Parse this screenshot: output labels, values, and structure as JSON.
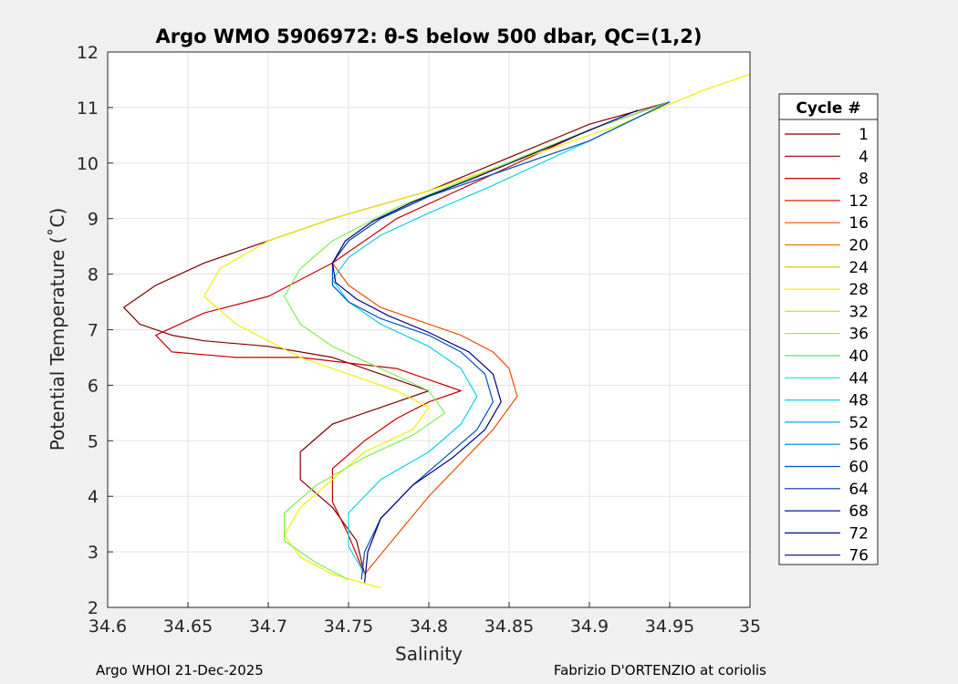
{
  "chart_data": {
    "type": "line",
    "title": "Argo WMO 5906972: θ-S below 500 dbar,  QC=(1,2)",
    "xlabel": "Salinity",
    "ylabel": "Potential Temperature (˚C)",
    "xlim": [
      34.6,
      35.0
    ],
    "ylim": [
      2,
      12
    ],
    "xticks": [
      "34.6",
      "34.65",
      "34.7",
      "34.75",
      "34.8",
      "34.85",
      "34.9",
      "34.95",
      "35"
    ],
    "yticks": [
      "2",
      "3",
      "4",
      "5",
      "6",
      "7",
      "8",
      "9",
      "10",
      "11",
      "12"
    ],
    "grid": true,
    "legend": {
      "title": "Cycle #",
      "placement": "outside-right",
      "entries": [
        {
          "label": "1",
          "color": "#800000"
        },
        {
          "label": "4",
          "color": "#a00000"
        },
        {
          "label": "8",
          "color": "#c80000"
        },
        {
          "label": "12",
          "color": "#e02000"
        },
        {
          "label": "16",
          "color": "#e85000"
        },
        {
          "label": "20",
          "color": "#e08000"
        },
        {
          "label": "24",
          "color": "#d8c000"
        },
        {
          "label": "28",
          "color": "#f0f000"
        },
        {
          "label": "32",
          "color": "#b8f020"
        },
        {
          "label": "36",
          "color": "#80f050"
        },
        {
          "label": "40",
          "color": "#40f080"
        },
        {
          "label": "44",
          "color": "#20e8b0"
        },
        {
          "label": "48",
          "color": "#10d0e0"
        },
        {
          "label": "52",
          "color": "#00b0e8"
        },
        {
          "label": "56",
          "color": "#0080d0"
        },
        {
          "label": "60",
          "color": "#0050c0"
        },
        {
          "label": "64",
          "color": "#0030b0"
        },
        {
          "label": "68",
          "color": "#0018a0"
        },
        {
          "label": "72",
          "color": "#000c90"
        },
        {
          "label": "76",
          "color": "#000080"
        }
      ]
    },
    "series": [
      {
        "color": "#800000",
        "x": [
          34.76,
          34.755,
          34.74,
          34.72,
          34.72,
          34.74,
          34.78,
          34.8,
          34.79,
          34.76,
          34.74,
          34.72,
          34.7,
          34.66,
          34.64,
          34.62,
          34.61,
          34.63,
          34.66,
          34.7,
          34.74,
          34.8,
          34.85,
          34.9,
          34.95
        ],
        "y": [
          2.6,
          3.2,
          3.8,
          4.3,
          4.8,
          5.3,
          5.7,
          5.9,
          6.0,
          6.3,
          6.5,
          6.6,
          6.7,
          6.8,
          6.9,
          7.1,
          7.4,
          7.8,
          8.2,
          8.6,
          9.0,
          9.5,
          10.1,
          10.7,
          11.1
        ]
      },
      {
        "color": "#c80000",
        "x": [
          34.76,
          34.75,
          34.74,
          34.74,
          34.76,
          34.78,
          34.8,
          34.82,
          34.8,
          34.78,
          34.75,
          34.72,
          34.68,
          34.64,
          34.63,
          34.66,
          34.7,
          34.74,
          34.78,
          34.84,
          34.9,
          34.95
        ],
        "y": [
          2.6,
          3.3,
          3.9,
          4.5,
          5.0,
          5.4,
          5.7,
          5.9,
          6.1,
          6.3,
          6.4,
          6.5,
          6.5,
          6.6,
          6.9,
          7.3,
          7.6,
          8.2,
          9.0,
          9.8,
          10.6,
          11.1
        ]
      },
      {
        "color": "#e85000",
        "x": [
          34.76,
          34.78,
          34.8,
          34.82,
          34.84,
          34.855,
          34.85,
          34.84,
          34.82,
          34.8,
          34.77,
          34.75,
          34.74,
          34.75,
          34.77,
          34.8,
          34.85,
          34.9,
          34.95
        ],
        "y": [
          2.6,
          3.3,
          4.0,
          4.6,
          5.2,
          5.8,
          6.3,
          6.6,
          6.9,
          7.1,
          7.4,
          7.8,
          8.2,
          8.6,
          9.0,
          9.4,
          10.0,
          10.6,
          11.1
        ]
      },
      {
        "color": "#f0f000",
        "x": [
          34.77,
          34.74,
          34.72,
          34.71,
          34.72,
          34.74,
          34.76,
          34.79,
          34.8,
          34.78,
          34.75,
          34.72,
          34.7,
          34.68,
          34.66,
          34.67,
          34.7,
          34.74,
          34.8,
          34.86,
          34.92,
          34.97,
          35.0
        ],
        "y": [
          2.35,
          2.6,
          2.9,
          3.3,
          3.8,
          4.3,
          4.8,
          5.2,
          5.6,
          5.9,
          6.2,
          6.5,
          6.8,
          7.1,
          7.6,
          8.1,
          8.6,
          9.0,
          9.5,
          10.1,
          10.7,
          11.3,
          11.6
        ]
      },
      {
        "color": "#80f050",
        "x": [
          34.75,
          34.73,
          34.71,
          34.71,
          34.73,
          34.76,
          34.79,
          34.81,
          34.8,
          34.77,
          34.74,
          34.72,
          34.71,
          34.72,
          34.74,
          34.78,
          34.84,
          34.9,
          34.95
        ],
        "y": [
          2.5,
          2.8,
          3.2,
          3.7,
          4.2,
          4.7,
          5.1,
          5.5,
          5.9,
          6.3,
          6.7,
          7.1,
          7.6,
          8.1,
          8.6,
          9.2,
          9.9,
          10.6,
          11.1
        ]
      },
      {
        "color": "#10d0e0",
        "x": [
          34.76,
          34.75,
          34.75,
          34.77,
          34.8,
          34.82,
          34.83,
          34.82,
          34.8,
          34.77,
          34.75,
          34.74,
          34.75,
          34.77,
          34.8,
          34.84,
          34.9,
          34.95
        ],
        "y": [
          2.6,
          3.1,
          3.7,
          4.3,
          4.8,
          5.3,
          5.8,
          6.3,
          6.7,
          7.1,
          7.5,
          7.9,
          8.3,
          8.7,
          9.1,
          9.6,
          10.4,
          11.1
        ]
      },
      {
        "color": "#0050c0",
        "x": [
          34.758,
          34.76,
          34.77,
          34.79,
          34.81,
          34.83,
          34.84,
          34.835,
          34.82,
          34.8,
          34.77,
          34.75,
          34.74,
          34.74,
          34.75,
          34.77,
          34.8,
          34.84,
          34.9,
          34.95
        ],
        "y": [
          2.5,
          3.0,
          3.6,
          4.2,
          4.7,
          5.2,
          5.7,
          6.2,
          6.6,
          6.9,
          7.2,
          7.5,
          7.8,
          8.2,
          8.6,
          9.0,
          9.4,
          9.8,
          10.4,
          11.1
        ]
      },
      {
        "color": "#000080",
        "x": [
          34.76,
          34.762,
          34.77,
          34.79,
          34.815,
          34.835,
          34.845,
          34.84,
          34.825,
          34.8,
          34.775,
          34.755,
          34.742,
          34.74,
          34.748,
          34.765,
          34.79,
          34.83,
          34.88,
          34.93
        ],
        "y": [
          2.45,
          3.0,
          3.6,
          4.2,
          4.7,
          5.2,
          5.7,
          6.2,
          6.6,
          6.95,
          7.25,
          7.55,
          7.85,
          8.2,
          8.6,
          8.95,
          9.3,
          9.75,
          10.35,
          10.95
        ]
      }
    ]
  },
  "footer": {
    "left": "Argo WHOI 21-Dec-2025",
    "right": "Fabrizio D'ORTENZIO at coriolis"
  }
}
